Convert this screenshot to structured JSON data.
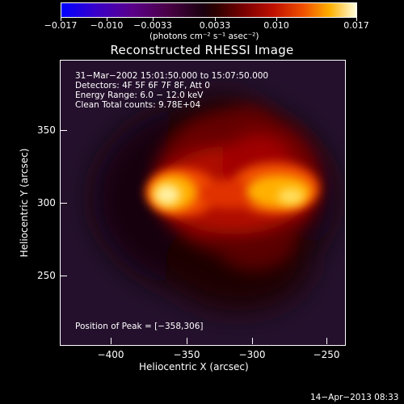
{
  "colorbar": {
    "tick_labels": [
      "−0.017",
      "−0.010",
      "−0.0033",
      "0.0033",
      "0.010",
      "0.017"
    ],
    "units": "(photons cm⁻² s⁻¹ asec⁻²)"
  },
  "plot": {
    "title": "Reconstructed RHESSI Image",
    "xlabel": "Heliocentric X (arcsec)",
    "ylabel": "Heliocentric Y (arcsec)",
    "x_ticks": [
      "−400",
      "−350",
      "−300",
      "−250"
    ],
    "y_ticks": [
      "350",
      "300",
      "250"
    ],
    "info_lines": [
      "31−Mar−2002 15:01:50.000 to 15:07:50.000",
      "Detectors: 4F 5F 6F 7F 8F, Att 0",
      "Energy Range: 6.0 − 12.0 keV",
      "Clean    Total counts: 9.78E+04"
    ],
    "peak_text": "Position of Peak = [−358,306]"
  },
  "footer": {
    "date": "14−Apr−2013 08:33"
  },
  "colors": {
    "background": "#000000",
    "foreground": "#ffffff"
  }
}
